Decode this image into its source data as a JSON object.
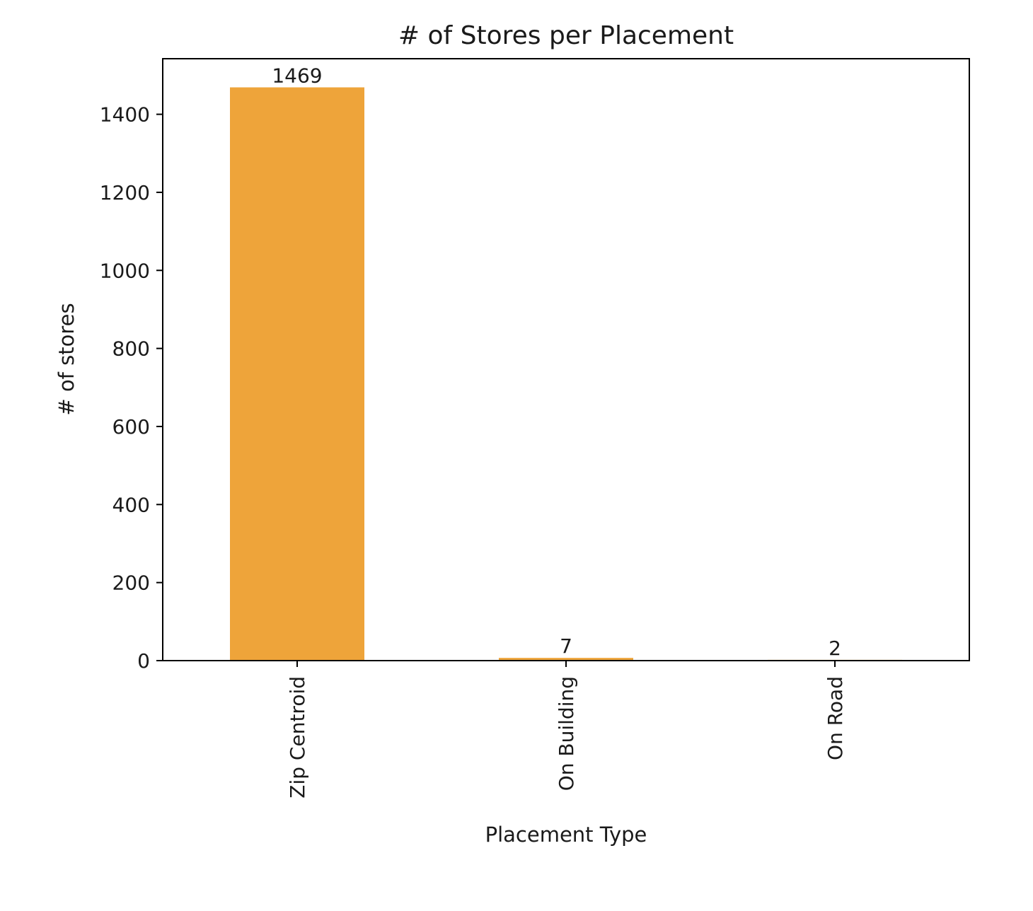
{
  "chart_data": {
    "type": "bar",
    "title": "# of Stores per Placement",
    "xlabel": "Placement Type",
    "ylabel": "# of stores",
    "categories": [
      "Zip Centroid",
      "On Building",
      "On Road"
    ],
    "values": [
      1469,
      7,
      2
    ],
    "data_labels": [
      "1469",
      "7",
      "2"
    ],
    "ylim": [
      0,
      1542.45
    ],
    "yticks": [
      0,
      200,
      400,
      600,
      800,
      1000,
      1200,
      1400
    ],
    "ytick_labels": [
      "0",
      "200",
      "400",
      "600",
      "800",
      "1000",
      "1200",
      "1400"
    ],
    "xtick_rotation": "vertical",
    "grid": false,
    "legend": "none",
    "bar_color": "#eea43a"
  }
}
